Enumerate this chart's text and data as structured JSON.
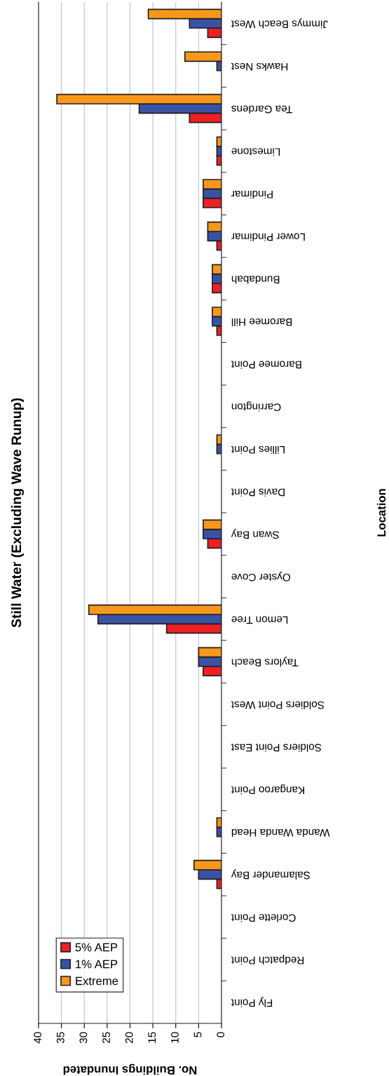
{
  "chart_data": {
    "type": "bar",
    "orientation": "horizontal",
    "title": "Still Water (Excluding Wave Runup)",
    "xlabel": "No. Buildings Inundated",
    "ylabel": "Location",
    "categories": [
      "Jimmys Beach West",
      "Hawks Nest",
      "Tea Gardens",
      "Limestone",
      "Pindimar",
      "Lower Pindimar",
      "Bundabah",
      "Baromee Hill",
      "Baromee Point",
      "Carrington",
      "Lillies Point",
      "Davis Point",
      "Swan Bay",
      "Oyster Cove",
      "Lemon Tree",
      "Taylors Beach",
      "Soldiers Point West",
      "Soldiers Point East",
      "Kangaroo Point",
      "Wanda Wanda Head",
      "Salamander Bay",
      "Corlette Point",
      "Redpatch Point",
      "Fly Point"
    ],
    "series": [
      {
        "name": "5% AEP",
        "color": "#ed2024",
        "values": [
          3,
          0,
          7,
          1,
          4,
          1,
          2,
          1,
          0,
          0,
          0,
          0,
          3,
          0,
          12,
          4,
          0,
          0,
          0,
          0,
          1,
          0,
          0,
          0
        ]
      },
      {
        "name": "1% AEP",
        "color": "#3953a4",
        "values": [
          7,
          1,
          18,
          1,
          4,
          3,
          2,
          2,
          0,
          0,
          1,
          0,
          4,
          0,
          27,
          5,
          0,
          0,
          0,
          1,
          5,
          0,
          0,
          0
        ]
      },
      {
        "name": "Extreme",
        "color": "#f7981d",
        "values": [
          16,
          8,
          36,
          1,
          4,
          3,
          2,
          2,
          0,
          0,
          1,
          0,
          4,
          0,
          29,
          5,
          0,
          0,
          0,
          1,
          6,
          0,
          0,
          0
        ]
      }
    ],
    "xlim": [
      40,
      0
    ],
    "xticks": [
      0,
      5,
      10,
      15,
      20,
      25,
      30,
      35,
      40
    ],
    "grid": "x",
    "legend": "bottom left"
  }
}
